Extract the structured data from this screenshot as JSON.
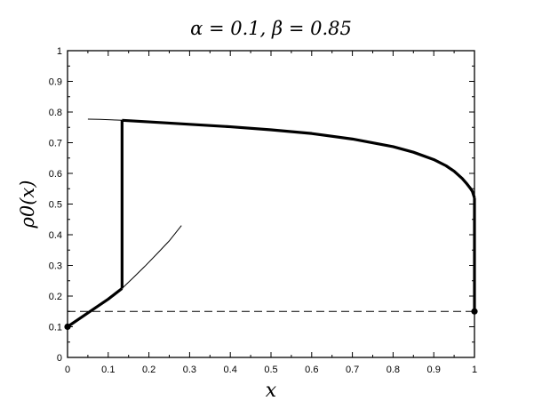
{
  "chart_data": {
    "type": "line",
    "title": "α = 0.1,  β = 0.85",
    "xlabel": "x",
    "ylabel": "ρ0(x)",
    "xlim": [
      0,
      1
    ],
    "ylim": [
      0,
      1
    ],
    "x_ticks": [
      "0",
      "0.1",
      "0.2",
      "0.3",
      "0.4",
      "0.5",
      "0.6",
      "0.7",
      "0.8",
      "0.9",
      "1"
    ],
    "y_ticks": [
      "0",
      "0.1",
      "0.2",
      "0.3",
      "0.4",
      "0.5",
      "0.6",
      "0.7",
      "0.8",
      "0.9",
      "1"
    ],
    "grid": false,
    "series": [
      {
        "style": "thin",
        "x": [
          0.05,
          0.08,
          0.1,
          0.12,
          0.134
        ],
        "y": [
          0.777,
          0.776,
          0.775,
          0.774,
          0.773
        ]
      },
      {
        "style": "thick",
        "x": [
          0.134,
          0.2,
          0.3,
          0.4,
          0.5,
          0.6,
          0.7,
          0.8,
          0.85,
          0.9,
          0.93,
          0.95,
          0.97,
          0.98,
          0.99,
          0.995,
          1.0
        ],
        "y": [
          0.773,
          0.768,
          0.76,
          0.752,
          0.742,
          0.73,
          0.712,
          0.687,
          0.669,
          0.645,
          0.625,
          0.607,
          0.583,
          0.568,
          0.551,
          0.541,
          0.52
        ]
      },
      {
        "style": "thick",
        "x": [
          0.134,
          0.134
        ],
        "y": [
          0.773,
          0.225
        ]
      },
      {
        "style": "thick",
        "x": [
          0.0,
          0.05,
          0.1,
          0.134
        ],
        "y": [
          0.1,
          0.145,
          0.19,
          0.225
        ]
      },
      {
        "style": "thin",
        "x": [
          0.134,
          0.16,
          0.19,
          0.22,
          0.25,
          0.28
        ],
        "y": [
          0.225,
          0.258,
          0.297,
          0.338,
          0.38,
          0.43
        ]
      },
      {
        "style": "thick",
        "x": [
          1.0,
          1.0
        ],
        "y": [
          0.52,
          0.15
        ]
      },
      {
        "style": "dashed",
        "x": [
          0.0,
          1.0
        ],
        "y": [
          0.15,
          0.15
        ]
      }
    ],
    "points": [
      {
        "x": 0.0,
        "y": 0.1
      },
      {
        "x": 1.0,
        "y": 0.15
      }
    ]
  }
}
